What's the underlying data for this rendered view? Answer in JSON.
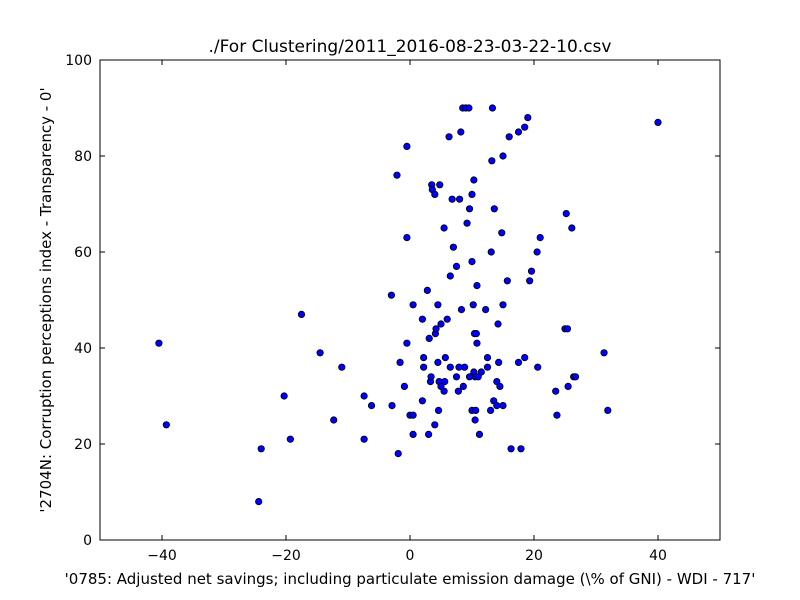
{
  "chart_data": {
    "type": "scatter",
    "title": "./For Clustering/2011_2016-08-23-03-22-10.csv",
    "xlabel": "'0785: Adjusted net savings; including particulate emission damage  (\\% of GNI) - WDI - 717'",
    "ylabel": "'2704N: Corruption perceptions index - Transparency - 0'",
    "xlim": [
      -50,
      50
    ],
    "ylim": [
      0,
      100
    ],
    "xticks": [
      -40,
      -20,
      0,
      20,
      40
    ],
    "yticks": [
      0,
      20,
      40,
      60,
      80,
      100
    ],
    "xtick_labels": [
      "−40",
      "−20",
      "0",
      "20",
      "40"
    ],
    "ytick_labels": [
      "0",
      "20",
      "40",
      "60",
      "80",
      "100"
    ],
    "grid": false,
    "marker_color": "#0000ff",
    "points": [
      [
        -40.5,
        41
      ],
      [
        -39.3,
        24
      ],
      [
        -24.4,
        8
      ],
      [
        -24,
        19
      ],
      [
        -20.3,
        30
      ],
      [
        -19.3,
        21
      ],
      [
        -17.5,
        47
      ],
      [
        -14.5,
        39
      ],
      [
        -12.3,
        25
      ],
      [
        -11,
        36
      ],
      [
        -7.4,
        30
      ],
      [
        -7.4,
        21
      ],
      [
        -6.2,
        28
      ],
      [
        -3,
        51
      ],
      [
        -2.9,
        28
      ],
      [
        -2.1,
        76
      ],
      [
        -1.9,
        18
      ],
      [
        -1.6,
        37
      ],
      [
        -0.9,
        32
      ],
      [
        -0.5,
        82
      ],
      [
        -0.5,
        63
      ],
      [
        -0.5,
        41
      ],
      [
        0,
        26
      ],
      [
        0.5,
        26
      ],
      [
        0.5,
        22
      ],
      [
        0.5,
        49
      ],
      [
        2,
        46
      ],
      [
        2,
        29
      ],
      [
        2.2,
        36
      ],
      [
        2.2,
        38
      ],
      [
        2.8,
        52
      ],
      [
        3,
        22
      ],
      [
        3.1,
        42
      ],
      [
        3.3,
        33
      ],
      [
        3.4,
        34
      ],
      [
        3.5,
        74
      ],
      [
        3.6,
        73
      ],
      [
        4,
        72
      ],
      [
        4,
        24
      ],
      [
        4.1,
        43
      ],
      [
        4.2,
        44
      ],
      [
        4.5,
        49
      ],
      [
        4.5,
        37
      ],
      [
        4.6,
        27
      ],
      [
        4.7,
        33
      ],
      [
        4.8,
        74
      ],
      [
        5,
        45
      ],
      [
        5,
        32
      ],
      [
        5.5,
        31
      ],
      [
        5.5,
        65
      ],
      [
        5.6,
        33
      ],
      [
        5.7,
        38
      ],
      [
        6,
        46
      ],
      [
        6.3,
        84
      ],
      [
        6.5,
        55
      ],
      [
        6.5,
        36
      ],
      [
        6.8,
        71
      ],
      [
        7,
        61
      ],
      [
        7.5,
        57
      ],
      [
        7.5,
        34
      ],
      [
        7.8,
        31
      ],
      [
        7.9,
        36
      ],
      [
        8,
        71
      ],
      [
        8.2,
        85
      ],
      [
        8.3,
        48
      ],
      [
        8.5,
        90
      ],
      [
        8.6,
        32
      ],
      [
        8.8,
        36
      ],
      [
        9,
        90
      ],
      [
        9.2,
        66
      ],
      [
        9.5,
        90
      ],
      [
        9.6,
        34
      ],
      [
        9.6,
        69
      ],
      [
        10,
        58
      ],
      [
        10,
        72
      ],
      [
        10,
        27
      ],
      [
        10.2,
        49
      ],
      [
        10.3,
        75
      ],
      [
        10.3,
        35
      ],
      [
        10.4,
        43
      ],
      [
        10.5,
        34
      ],
      [
        10.5,
        25
      ],
      [
        10.6,
        27
      ],
      [
        10.7,
        43
      ],
      [
        10.8,
        41
      ],
      [
        10.8,
        53
      ],
      [
        11,
        34
      ],
      [
        11.2,
        22
      ],
      [
        11.5,
        35
      ],
      [
        12.2,
        48
      ],
      [
        12.5,
        36
      ],
      [
        12.5,
        38
      ],
      [
        13,
        27
      ],
      [
        13.1,
        60
      ],
      [
        13.2,
        79
      ],
      [
        13.3,
        90
      ],
      [
        13.5,
        29
      ],
      [
        13.6,
        69
      ],
      [
        14,
        28
      ],
      [
        14,
        33
      ],
      [
        14.2,
        45
      ],
      [
        14.3,
        37
      ],
      [
        14.5,
        32
      ],
      [
        14.8,
        64
      ],
      [
        15,
        80
      ],
      [
        15,
        49
      ],
      [
        15,
        28
      ],
      [
        15.7,
        54
      ],
      [
        16,
        84
      ],
      [
        16.3,
        19
      ],
      [
        17.5,
        85
      ],
      [
        17.5,
        37
      ],
      [
        17.9,
        19
      ],
      [
        18.5,
        86
      ],
      [
        18.5,
        38
      ],
      [
        19,
        88
      ],
      [
        19.3,
        54
      ],
      [
        19.6,
        56
      ],
      [
        20.5,
        60
      ],
      [
        20.6,
        36
      ],
      [
        21,
        63
      ],
      [
        23.5,
        31
      ],
      [
        23.7,
        26
      ],
      [
        25,
        44
      ],
      [
        25.2,
        68
      ],
      [
        25.4,
        44
      ],
      [
        25.5,
        32
      ],
      [
        26.1,
        65
      ],
      [
        26.4,
        34
      ],
      [
        26.7,
        34
      ],
      [
        31.3,
        39
      ],
      [
        31.9,
        27
      ],
      [
        40,
        87
      ]
    ]
  }
}
